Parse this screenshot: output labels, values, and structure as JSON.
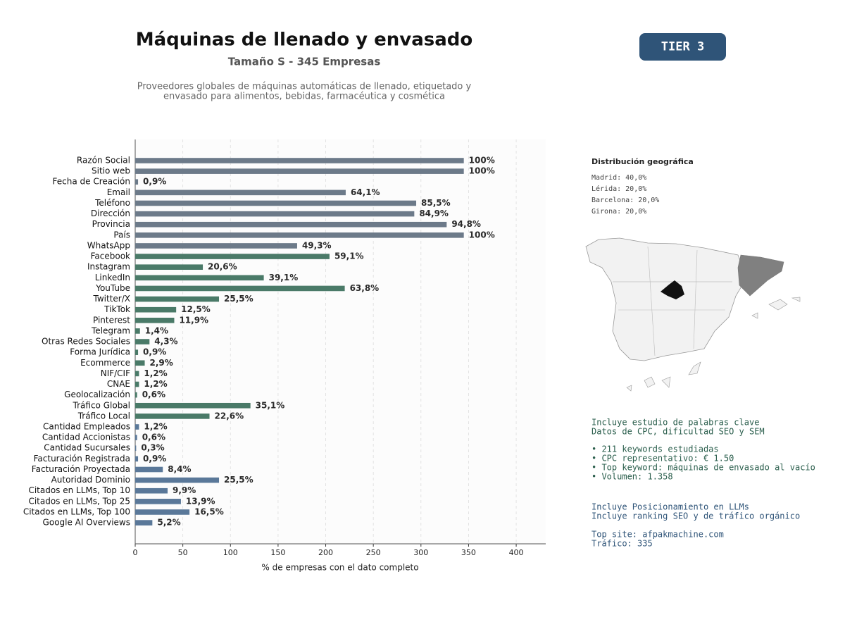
{
  "chart_data": {
    "type": "barh",
    "title": "Máquinas de llenado y envasado",
    "subtitle": "Tamaño S - 345 Empresas",
    "description": [
      "Proveedores globales de máquinas automáticas de llenado, etiquetado y",
      "envasado para alimentos, bebidas, farmacéutica y cosmética"
    ],
    "xlabel": "% de empresas con el dato completo",
    "categories": [
      "Razón Social",
      "Sitio web",
      "Fecha de Creación",
      "Email",
      "Teléfono",
      "Dirección",
      "Provincia",
      "País",
      "WhatsApp",
      "Facebook",
      "Instagram",
      "LinkedIn",
      "YouTube",
      "Twitter/X",
      "TikTok",
      "Pinterest",
      "Telegram",
      "Otras Redes Sociales",
      "Forma Jurídica",
      "Ecommerce",
      "NIF/CIF",
      "CNAE",
      "Geolocalización",
      "Tráfico Global",
      "Tráfico Local",
      "Cantidad Empleados",
      "Cantidad Accionistas",
      "Cantidad Sucursales",
      "Facturación Registrada",
      "Facturación Proyectada",
      "Autoridad Dominio",
      "Citados en LLMs, Top 10",
      "Citados en LLMs, Top 25",
      "Citados en LLMs, Top 100",
      "Google AI Overviews"
    ],
    "values": [
      345,
      345,
      3,
      221,
      295,
      293,
      327,
      345,
      170,
      204,
      71,
      135,
      220,
      88,
      43,
      41,
      5,
      15,
      3,
      10,
      4,
      4,
      2,
      121,
      78,
      4,
      2,
      1,
      3,
      29,
      88,
      34,
      48,
      57,
      18
    ],
    "value_labels": [
      "100%",
      "100%",
      "0,9%",
      "64,1%",
      "85,5%",
      "84,9%",
      "94,8%",
      "100%",
      "49,3%",
      "59,1%",
      "20,6%",
      "39,1%",
      "63,8%",
      "25,5%",
      "12,5%",
      "11,9%",
      "1,4%",
      "4,3%",
      "0,9%",
      "2,9%",
      "1,2%",
      "1,2%",
      "0,6%",
      "35,1%",
      "22,6%",
      "1,2%",
      "0,6%",
      "0,3%",
      "0,9%",
      "8,4%",
      "25,5%",
      "9,9%",
      "13,9%",
      "16,5%",
      "5,2%"
    ],
    "colors": [
      "#6c7a89",
      "#6c7a89",
      "#6c7a89",
      "#6c7a89",
      "#6c7a89",
      "#6c7a89",
      "#6c7a89",
      "#6c7a89",
      "#6c7a89",
      "#4a7a68",
      "#4a7a68",
      "#4a7a68",
      "#4a7a68",
      "#4a7a68",
      "#4a7a68",
      "#4a7a68",
      "#4a7a68",
      "#4a7a68",
      "#4a7a68",
      "#4a7a68",
      "#4a7a68",
      "#4a7a68",
      "#4a7a68",
      "#4a7a68",
      "#4a7a68",
      "#5a7899",
      "#5a7899",
      "#5a7899",
      "#5a7899",
      "#5a7899",
      "#5a7899",
      "#5a7899",
      "#5a7899",
      "#5a7899",
      "#5a7899"
    ],
    "xlim": [
      0,
      431
    ],
    "xticks": [
      0,
      50,
      100,
      150,
      200,
      250,
      300,
      350,
      400
    ],
    "grid": true
  },
  "badge": "TIER 3",
  "geo": {
    "title": "Distribución geográfica",
    "items": [
      "Madrid: 40,0%",
      "Lérida: 20,0%",
      "Barcelona: 20,0%",
      "Girona: 20,0%"
    ]
  },
  "seo": {
    "intro": [
      "Incluye estudio de palabras clave",
      "Datos de CPC, dificultad SEO y SEM"
    ],
    "bullets": [
      "• 211 keywords estudiadas",
      "• CPC representativo: € 1.50",
      "• Top keyword: máquinas de envasado al vacío",
      "• Volumen: 1.358"
    ]
  },
  "llm": {
    "intro": [
      "Incluye Posicionamiento en LLMs",
      "Incluye ranking SEO y de tráfico orgánico"
    ],
    "site": [
      "Top site: afpakmachine.com",
      "Tráfico: 335"
    ]
  }
}
